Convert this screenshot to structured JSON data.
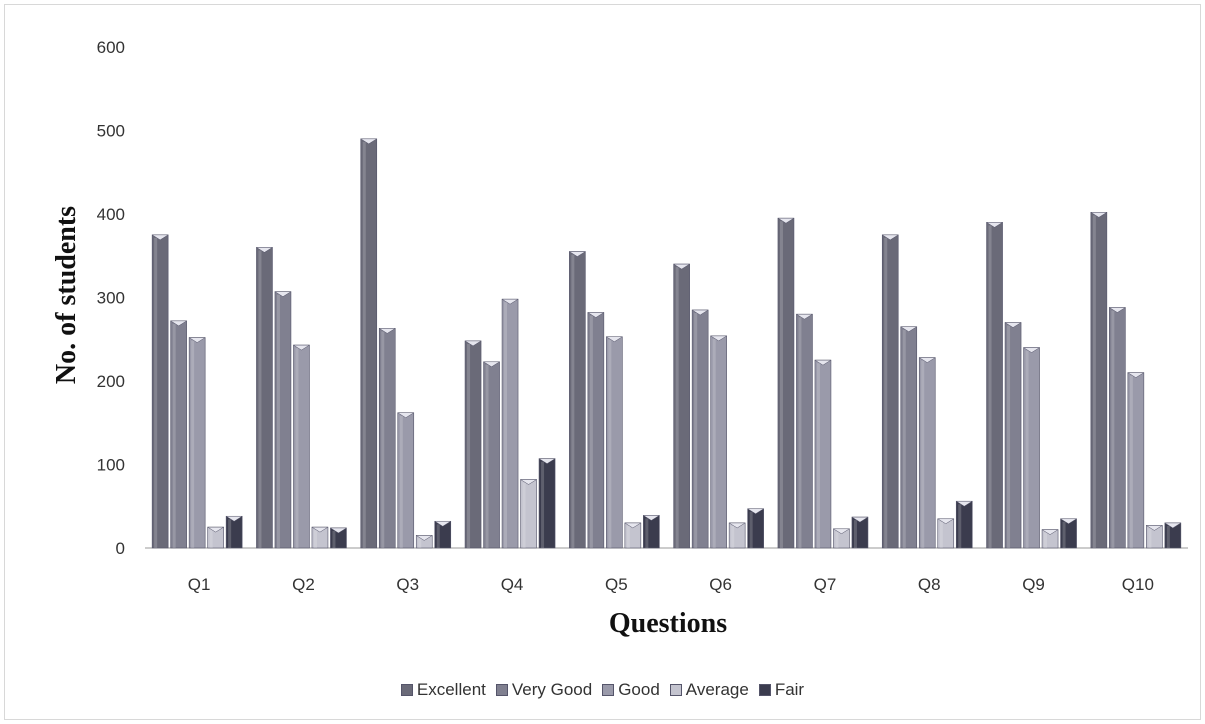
{
  "chart_data": {
    "type": "bar",
    "xlabel": "Questions",
    "ylabel": "No. of students",
    "ylim": [
      0,
      600
    ],
    "yticks": [
      "0",
      "100",
      "200",
      "300",
      "400",
      "500",
      "600"
    ],
    "grid": false,
    "legend_position": "bottom",
    "categories": [
      "Q1",
      "Q2",
      "Q3",
      "Q4",
      "Q5",
      "Q6",
      "Q7",
      "Q8",
      "Q9",
      "Q10"
    ],
    "series": [
      {
        "name": "Excellent",
        "color": "#6a6a78",
        "values": [
          375,
          360,
          490,
          248,
          355,
          340,
          395,
          375,
          390,
          402
        ]
      },
      {
        "name": "Very Good",
        "color": "#808090",
        "values": [
          272,
          307,
          263,
          223,
          282,
          285,
          280,
          265,
          270,
          288
        ]
      },
      {
        "name": "Good",
        "color": "#9a9aaa",
        "values": [
          252,
          243,
          162,
          298,
          253,
          254,
          225,
          228,
          240,
          210
        ]
      },
      {
        "name": "Average",
        "color": "#c4c4cf",
        "values": [
          25,
          25,
          15,
          82,
          30,
          30,
          23,
          35,
          22,
          27
        ]
      },
      {
        "name": "Fair",
        "color": "#3b3c4e",
        "values": [
          38,
          24,
          32,
          107,
          39,
          47,
          37,
          56,
          35,
          30
        ]
      }
    ]
  }
}
